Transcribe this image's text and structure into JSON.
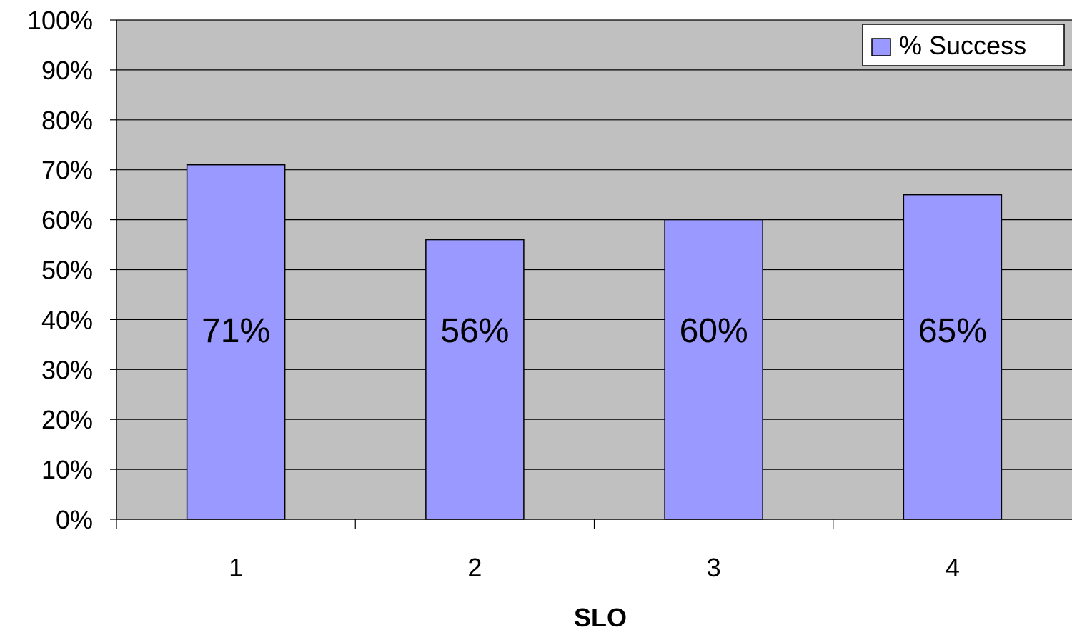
{
  "chart_data": {
    "type": "bar",
    "categories": [
      "1",
      "2",
      "3",
      "4"
    ],
    "series": [
      {
        "name": "% Success",
        "values": [
          71,
          56,
          60,
          65
        ]
      }
    ],
    "data_labels": [
      "71%",
      "56%",
      "60%",
      "65%"
    ],
    "y_ticks": [
      "0%",
      "10%",
      "20%",
      "30%",
      "40%",
      "50%",
      "60%",
      "70%",
      "80%",
      "90%",
      "100%"
    ],
    "ylim": [
      0,
      100
    ],
    "xlabel": "SLO",
    "ylabel": "",
    "title": "",
    "grid": true,
    "legend_position": "top-right",
    "colors": {
      "bar_fill": "#9999ff",
      "plot_background": "#c0c0c0",
      "axis": "#000000",
      "gridline": "#000000"
    }
  }
}
